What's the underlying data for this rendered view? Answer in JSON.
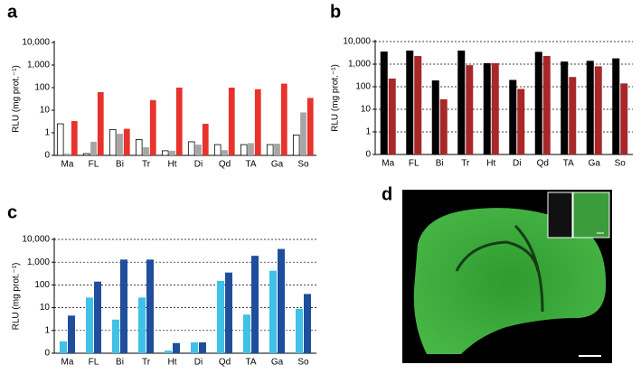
{
  "chart_data": [
    {
      "type": "bar",
      "panel_label": "a",
      "log": true,
      "grid": false,
      "y_label": "RLU (mg prot.⁻¹)",
      "categories": [
        "Ma",
        "FL",
        "Bi",
        "Tr",
        "Ht",
        "Di",
        "Qd",
        "TA",
        "Ga",
        "So"
      ],
      "ylim": [
        0.1,
        10000
      ],
      "yticks": [
        {
          "value": 0.1,
          "label": "0"
        },
        1,
        10,
        100,
        {
          "value": 1000,
          "label": "1,000"
        },
        {
          "value": 10000,
          "label": "10,000"
        }
      ],
      "series": [
        {
          "color": "#ffffff",
          "values": [
            2.5,
            0.12,
            1.4,
            0.5,
            0.16,
            0.4,
            0.3,
            0.3,
            0.3,
            0.8
          ]
        },
        {
          "color": "#a6a6a6",
          "values": [
            0.12,
            0.4,
            0.9,
            0.23,
            0.16,
            0.3,
            0.17,
            0.35,
            0.33,
            8
          ]
        },
        {
          "color": "#e8322b",
          "values": [
            3.3,
            63,
            1.5,
            28,
            100,
            2.5,
            100,
            85,
            150,
            35
          ]
        }
      ]
    },
    {
      "type": "bar",
      "panel_label": "b",
      "log": true,
      "grid": true,
      "y_label": "RLU (mg prot.⁻¹)",
      "categories": [
        "Ma",
        "FL",
        "Bi",
        "Tr",
        "Ht",
        "Di",
        "Qd",
        "TA",
        "Ga",
        "So"
      ],
      "ylim": [
        0.1,
        10000
      ],
      "yticks": [
        {
          "value": 0.1,
          "label": "0"
        },
        1,
        10,
        100,
        {
          "value": 1000,
          "label": "1,000"
        },
        {
          "value": 10000,
          "label": "10,000"
        }
      ],
      "series": [
        {
          "color": "#000000",
          "values": [
            3600,
            4000,
            190,
            4000,
            1100,
            200,
            3500,
            1300,
            1400,
            1800
          ]
        },
        {
          "color": "#a8282a",
          "values": [
            230,
            2300,
            28,
            900,
            1100,
            80,
            2300,
            270,
            800,
            140
          ]
        }
      ]
    },
    {
      "type": "bar",
      "panel_label": "c",
      "log": true,
      "grid": true,
      "y_label": "RLU (mg prot.⁻¹)",
      "categories": [
        "Ma",
        "FL",
        "Bi",
        "Tr",
        "Ht",
        "Di",
        "Qd",
        "TA",
        "Ga",
        "So"
      ],
      "ylim": [
        0.1,
        10000
      ],
      "yticks": [
        {
          "value": 0.1,
          "label": "0"
        },
        1,
        10,
        100,
        {
          "value": 1000,
          "label": "1,000"
        },
        {
          "value": 10000,
          "label": "10,000"
        }
      ],
      "series": [
        {
          "color": "#3fc1e8",
          "values": [
            0.33,
            28,
            3,
            28,
            0.13,
            0.3,
            150,
            5,
            420,
            9
          ]
        },
        {
          "color": "#1f4e9c",
          "values": [
            4.5,
            140,
            1300,
            1300,
            0.28,
            0.3,
            350,
            1900,
            3800,
            40
          ]
        }
      ]
    }
  ],
  "image_panel": {
    "panel_label": "d"
  }
}
